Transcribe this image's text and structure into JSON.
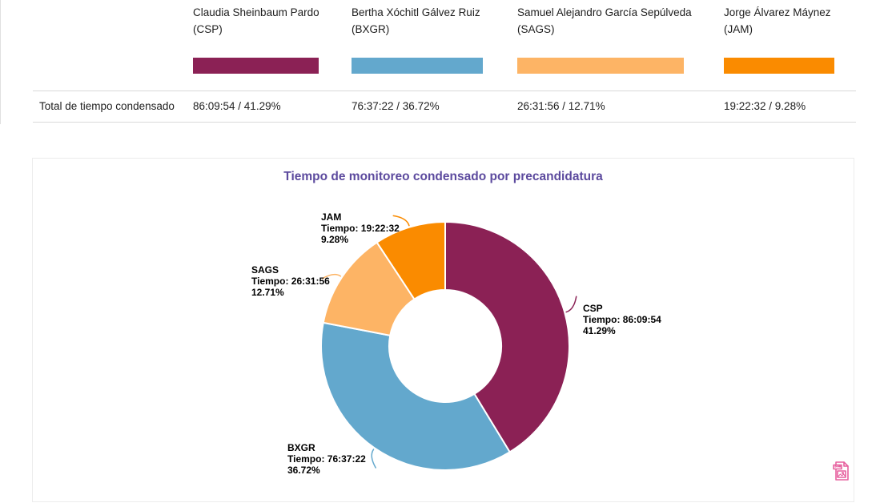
{
  "table": {
    "row_label": "Total de tiempo condensado",
    "columns": [
      {
        "name": "Claudia Sheinbaum Pardo",
        "abbr": "(CSP)",
        "color": "#8b2155",
        "value": "86:09:54 / 41.29%"
      },
      {
        "name": "Bertha Xóchitl Gálvez Ruiz",
        "abbr": "(BXGR)",
        "color": "#63a8cd",
        "value": "76:37:22 / 36.72%"
      },
      {
        "name": "Samuel Alejandro García Sepúlveda",
        "abbr": "(SAGS)",
        "color": "#fdb465",
        "value": "26:31:56 / 12.71%"
      },
      {
        "name": "Jorge Álvarez Máynez",
        "abbr": "(JAM)",
        "color": "#fa8b00",
        "value": "19:22:32 / 9.28%"
      }
    ]
  },
  "chart_data": {
    "type": "pie",
    "donut": true,
    "title": "Tiempo de monitoreo condensado por precandidatura",
    "title_color": "#5c4a9e",
    "legend_position": "outside-labels",
    "units": "hh:mm:ss / percent of total monitored time",
    "slices": [
      {
        "label": "CSP",
        "candidate": "Claudia Sheinbaum Pardo",
        "time": "86:09:54",
        "percent": 41.29,
        "time_label": "Tiempo: 86:09:54",
        "percent_label": "41.29%",
        "color": "#8b2155"
      },
      {
        "label": "BXGR",
        "candidate": "Bertha Xóchitl Gálvez Ruiz",
        "time": "76:37:22",
        "percent": 36.72,
        "time_label": "Tiempo: 76:37:22",
        "percent_label": "36.72%",
        "color": "#63a8cd"
      },
      {
        "label": "SAGS",
        "candidate": "Samuel Alejandro García Sepúlveda",
        "time": "26:31:56",
        "percent": 12.71,
        "time_label": "Tiempo: 26:31:56",
        "percent_label": "12.71%",
        "color": "#fdb465"
      },
      {
        "label": "JAM",
        "candidate": "Jorge Álvarez Máynez",
        "time": "19:22:32",
        "percent": 9.28,
        "time_label": "Tiempo: 19:22:32",
        "percent_label": "9.28%",
        "color": "#fa8b00"
      }
    ]
  },
  "icons": {
    "export_png": "png-image-file-icon",
    "export_color": "#e7619f"
  }
}
